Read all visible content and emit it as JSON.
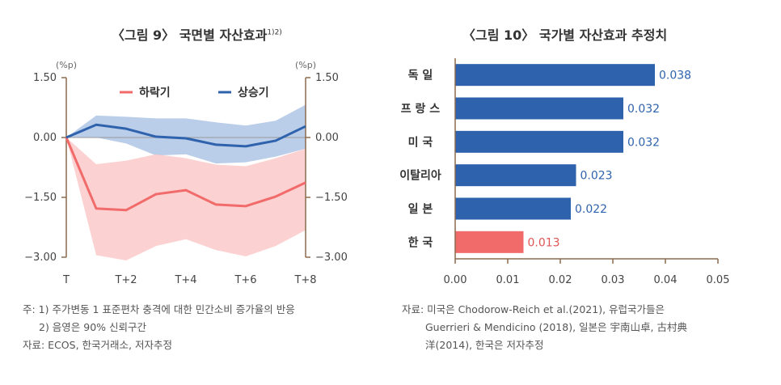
{
  "left_title": {
    "text": "〈그림 9〉 국면별 자산효과",
    "sup": "1)2)"
  },
  "right_title": {
    "text": "〈그림 10〉 국가별 자산효과 추정치"
  },
  "chart_data": [
    {
      "type": "line",
      "unit_label_left": "(%p)",
      "unit_label_right": "(%p)",
      "x": [
        "T",
        "T+1",
        "T+2",
        "T+3",
        "T+4",
        "T+5",
        "T+6",
        "T+7",
        "T+8"
      ],
      "x_tick_labels": [
        "T",
        "",
        "T+2",
        "",
        "T+4",
        "",
        "T+6",
        "",
        "T+8"
      ],
      "ylim": [
        -3.0,
        1.5
      ],
      "y_ticks": [
        1.5,
        0.0,
        -1.5,
        -3.0
      ],
      "y_tick_labels": [
        "1.50",
        "0.00",
        "−1.50",
        "−3.00"
      ],
      "legend_position": "top",
      "series": [
        {
          "name": "하락기",
          "color": "#f26b6b",
          "band_color": "#fbc9c9",
          "values": [
            0,
            -1.78,
            -1.82,
            -1.42,
            -1.32,
            -1.68,
            -1.72,
            -1.48,
            -1.13
          ],
          "lower": [
            0,
            -2.95,
            -3.08,
            -2.72,
            -2.55,
            -2.82,
            -2.98,
            -2.72,
            -2.32
          ],
          "upper": [
            0,
            -0.67,
            -0.58,
            -0.42,
            -0.52,
            -0.68,
            -0.72,
            -0.52,
            -0.28
          ]
        },
        {
          "name": "상승기",
          "color": "#2f62ad",
          "band_color": "#a9c1e3",
          "values": [
            0,
            0.32,
            0.22,
            0.02,
            -0.02,
            -0.18,
            -0.22,
            -0.08,
            0.28
          ],
          "lower": [
            0,
            0.0,
            -0.15,
            -0.45,
            -0.42,
            -0.65,
            -0.62,
            -0.48,
            -0.28
          ],
          "upper": [
            0,
            0.55,
            0.52,
            0.48,
            0.48,
            0.38,
            0.3,
            0.42,
            0.82
          ]
        }
      ]
    },
    {
      "type": "bar",
      "orientation": "horizontal",
      "categories": [
        "독    일",
        "프 랑 스",
        "미    국",
        "이탈리아",
        "일    본",
        "한    국"
      ],
      "values": [
        0.038,
        0.032,
        0.032,
        0.023,
        0.022,
        0.013
      ],
      "data_labels": [
        "0.038",
        "0.032",
        "0.032",
        "0.023",
        "0.022",
        "0.013"
      ],
      "bar_colors": [
        "#2f62ad",
        "#2f62ad",
        "#2f62ad",
        "#2f62ad",
        "#2f62ad",
        "#f26b6b"
      ],
      "label_colors": [
        "#2f62ad",
        "#2f62ad",
        "#2f62ad",
        "#2f62ad",
        "#2f62ad",
        "#e05555"
      ],
      "xlim": [
        0.0,
        0.05
      ],
      "x_ticks": [
        0.0,
        0.01,
        0.02,
        0.03,
        0.04,
        0.05
      ],
      "x_tick_labels": [
        "0.00",
        "0.01",
        "0.02",
        "0.03",
        "0.04",
        "0.05"
      ]
    }
  ],
  "notes_left": {
    "line1": "주: 1) 주가변동 1 표준편차 충격에 대한 민간소비 증가율의 반응",
    "line2": "2) 음영은 90% 신뢰구간",
    "line3": "자료: ECOS, 한국거래소, 저자추정"
  },
  "notes_right": {
    "line1": "자료: 미국은 Chodorow-Reich et al.(2021), 유럽국가들은",
    "line2": "Guerrieri & Mendicino (2018), 일본은 宇南山卓, 古村典",
    "line3": "洋(2014), 한국은 저자추정"
  }
}
